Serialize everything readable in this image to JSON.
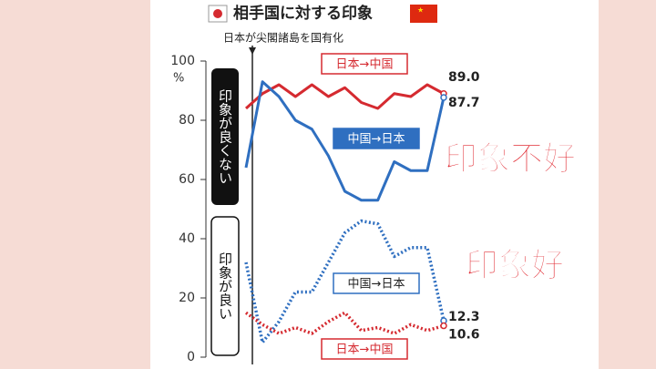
{
  "chart_data": {
    "type": "line",
    "title": "相手国に対する印象",
    "annotation": "日本が尖閣諸島を国有化",
    "ylabel": "%",
    "band_labels": [
      "印象が良くない",
      "印象が良い"
    ],
    "comments": [
      "印象不好",
      "印象好"
    ],
    "categories": [
      null,
      null,
      null,
      null,
      null,
      null,
      null,
      null,
      null,
      null,
      null,
      null,
      null
    ],
    "ylim": [
      0,
      100
    ],
    "yticks": [
      0,
      20,
      40,
      60,
      80,
      100
    ],
    "series": [
      {
        "name": "日本→中国",
        "color": "#d52a30",
        "dash": false,
        "values": [
          84,
          89,
          92,
          88,
          92,
          88,
          91,
          86,
          84,
          89,
          88,
          92,
          89
        ],
        "value_labels": [
          null,
          null,
          null,
          null,
          null,
          null,
          null,
          null,
          null,
          null,
          null,
          null,
          "89.0"
        ]
      },
      {
        "name": "中国→日本",
        "color": "#2f6fc0",
        "dash": false,
        "values": [
          64,
          93,
          88,
          80,
          77,
          68,
          56,
          53,
          53,
          66,
          63,
          63,
          87.7
        ]
      },
      {
        "name": "中国→日本",
        "color": "#2f6fc0",
        "dash": true,
        "values": [
          32,
          5,
          12,
          22,
          22,
          32,
          42,
          46,
          45,
          34,
          37,
          37,
          12.3
        ]
      },
      {
        "name": "日本→中国",
        "color": "#d52a30",
        "dash": true,
        "values": [
          15,
          11,
          8,
          10,
          8,
          12,
          15,
          9,
          10,
          8,
          11,
          9,
          10.6
        ]
      }
    ]
  }
}
